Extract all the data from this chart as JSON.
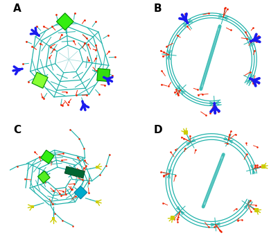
{
  "figure_width": 4.01,
  "figure_height": 3.46,
  "dpi": 100,
  "bg_color": "#ffffff",
  "panel_labels": [
    "A",
    "B",
    "C",
    "D"
  ],
  "label_fontsize": 11,
  "label_fontweight": "bold",
  "teal": "#20b2aa",
  "red": "#ee2200",
  "blue": "#1a1aee",
  "green": "#22ee22",
  "dark_green": "#006633",
  "cyan_sub": "#00aacc",
  "yellow": "#cccc00",
  "white": "#ffffff",
  "gray": "#888888"
}
